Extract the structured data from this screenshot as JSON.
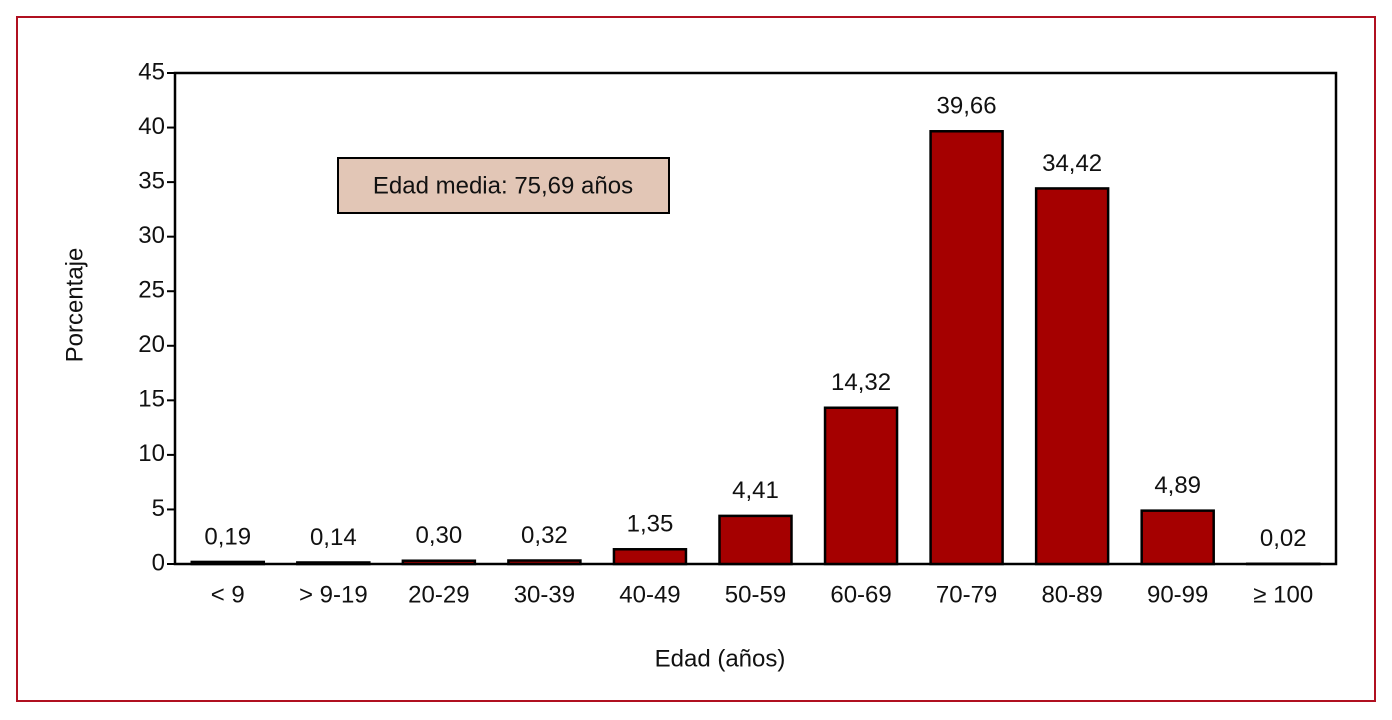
{
  "chart_data": {
    "type": "bar",
    "annotation": "Edad media: 75,69 años",
    "ylabel": "Porcentaje",
    "xlabel": "Edad (años)",
    "categories": [
      "< 9",
      "> 9-19",
      "20-29",
      "30-39",
      "40-49",
      "50-59",
      "60-69",
      "70-79",
      "80-89",
      "90-99",
      "≥ 100"
    ],
    "values": [
      0.19,
      0.14,
      0.3,
      0.32,
      1.35,
      4.41,
      14.32,
      39.66,
      34.42,
      4.89,
      0.02
    ],
    "value_labels": [
      "0,19",
      "0,14",
      "0,30",
      "0,32",
      "1,35",
      "4,41",
      "14,32",
      "39,66",
      "34,42",
      "4,89",
      "0,02"
    ],
    "color": "#a50000",
    "ylim": [
      0,
      45
    ],
    "yticks": [
      0,
      5,
      10,
      15,
      20,
      25,
      30,
      35,
      40,
      45
    ]
  }
}
